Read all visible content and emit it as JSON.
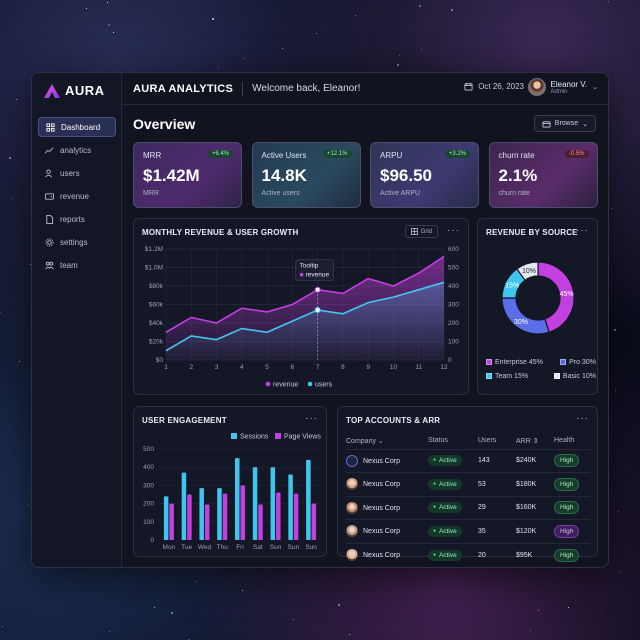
{
  "app": {
    "logo_text": "AURA",
    "brand_title": "AURA ANALYTICS",
    "welcome": "Welcome back, Eleanor!",
    "date": "Oct 26, 2023",
    "user_name": "Eleanor V.",
    "user_role": "Admin",
    "accent": "#b846e8"
  },
  "sidebar": {
    "items": [
      {
        "label": "Dashboard",
        "icon": "grid-icon",
        "active": true
      },
      {
        "label": "analytics",
        "icon": "trend-icon",
        "active": false
      },
      {
        "label": "users",
        "icon": "users-icon",
        "active": false
      },
      {
        "label": "revenue",
        "icon": "wallet-icon",
        "active": false
      },
      {
        "label": "reports",
        "icon": "file-icon",
        "active": false
      },
      {
        "label": "settings",
        "icon": "gear-icon",
        "active": false
      },
      {
        "label": "team",
        "icon": "team-icon",
        "active": false
      }
    ]
  },
  "page": {
    "title": "Overview",
    "browse_label": "Browse"
  },
  "kpis": [
    {
      "label": "MRR",
      "delta": "+6.4%",
      "value": "$1.42M",
      "sub": "MRR",
      "trend": "up"
    },
    {
      "label": "Active Users",
      "delta": "+12.1%",
      "value": "14.8K",
      "sub": "Active users",
      "trend": "up"
    },
    {
      "label": "ARPU",
      "delta": "+3.2%",
      "value": "$96.50",
      "sub": "Active ARPU",
      "trend": "up"
    },
    {
      "label": "churn rate",
      "delta": "-0.5%",
      "value": "2.1%",
      "sub": "churn rate",
      "trend": "down"
    }
  ],
  "growth_panel": {
    "title": "MONTHLY REVENUE & USER GROWTH",
    "grid_label": "Grid",
    "tooltip_title": "Tooltip",
    "tooltip_item": "revenue"
  },
  "source_panel": {
    "title": "REVENUE BY SOURCE"
  },
  "engagement_panel": {
    "title": "USER ENGAGEMENT"
  },
  "accounts_panel": {
    "title": "TOP ACCOUNTS & ARR",
    "columns": [
      "Company",
      "Status",
      "Users",
      "ARR",
      "Health"
    ],
    "rows": [
      {
        "company": "Nexus Corp",
        "status": "Active",
        "users": "143",
        "arr": "$240K",
        "health": "High",
        "icon_color": "#5b6bd6"
      },
      {
        "company": "Nexus Corp",
        "status": "Active",
        "users": "53",
        "arr": "$180K",
        "health": "High",
        "icon_color": "#d2a184"
      },
      {
        "company": "Nexus Corp",
        "status": "Active",
        "users": "29",
        "arr": "$160K",
        "health": "High",
        "icon_color": "#c98e72"
      },
      {
        "company": "Nexus Corp",
        "status": "Active",
        "users": "35",
        "arr": "$120K",
        "health": "High",
        "icon_color": "#b9a08a",
        "health_purple": true
      },
      {
        "company": "Nexus Corp",
        "status": "Active",
        "users": "20",
        "arr": "$95K",
        "health": "High",
        "icon_color": "#d9b29a"
      }
    ]
  },
  "chart_data": [
    {
      "type": "line",
      "title": "MONTHLY REVENUE & USER GROWTH",
      "x": [
        1,
        2,
        3,
        4,
        5,
        6,
        7,
        8,
        9,
        10,
        11,
        12
      ],
      "left_ticks": [
        "$0",
        "$20k",
        "$40k",
        "$60k",
        "$80k",
        "$1.0M",
        "$1.2M"
      ],
      "right_ticks": [
        "0",
        "100",
        "200",
        "300",
        "400",
        "500",
        "600"
      ],
      "ylim": [
        0,
        600
      ],
      "series": [
        {
          "name": "revenue",
          "color": "#c23fe0",
          "values": [
            150,
            230,
            200,
            280,
            260,
            300,
            380,
            360,
            440,
            400,
            470,
            560
          ]
        },
        {
          "name": "users",
          "color": "#46c6ee",
          "values": [
            50,
            130,
            110,
            170,
            150,
            210,
            270,
            250,
            310,
            340,
            380,
            420
          ]
        }
      ],
      "tooltip_index": 6,
      "grid": true,
      "legend": "bottom"
    },
    {
      "type": "pie",
      "title": "REVENUE BY SOURCE",
      "slices": [
        {
          "name": "Enterprise",
          "value": 45,
          "label": "45%",
          "legend": "Enterprise 45%",
          "color": "#c23fe0"
        },
        {
          "name": "Pro",
          "value": 30,
          "label": "30%",
          "legend": "Pro 30%",
          "color": "#5b6ee8"
        },
        {
          "name": "Team",
          "value": 15,
          "label": "15%",
          "legend": "Team 15%",
          "color": "#3fc6ee"
        },
        {
          "name": "Basic",
          "value": 10,
          "label": "10%",
          "legend": "Basic 10%",
          "color": "#e6e8f2"
        }
      ]
    },
    {
      "type": "bar",
      "title": "USER ENGAGEMENT",
      "categories": [
        "Mon",
        "Tue",
        "Wed",
        "Thu",
        "Fri",
        "Sat",
        "Sun",
        "Sun",
        "Sun"
      ],
      "y_ticks": [
        "0",
        "100",
        "200",
        "300",
        "400",
        "500"
      ],
      "ylim": [
        0,
        500
      ],
      "series": [
        {
          "name": "Sessions",
          "color": "#3fc6ee",
          "values": [
            240,
            370,
            285,
            285,
            450,
            400,
            400,
            360,
            440
          ]
        },
        {
          "name": "Page Views",
          "color": "#c23fe0",
          "values": [
            200,
            250,
            195,
            255,
            300,
            195,
            260,
            255,
            200
          ]
        }
      ],
      "legend": "top-right"
    }
  ]
}
